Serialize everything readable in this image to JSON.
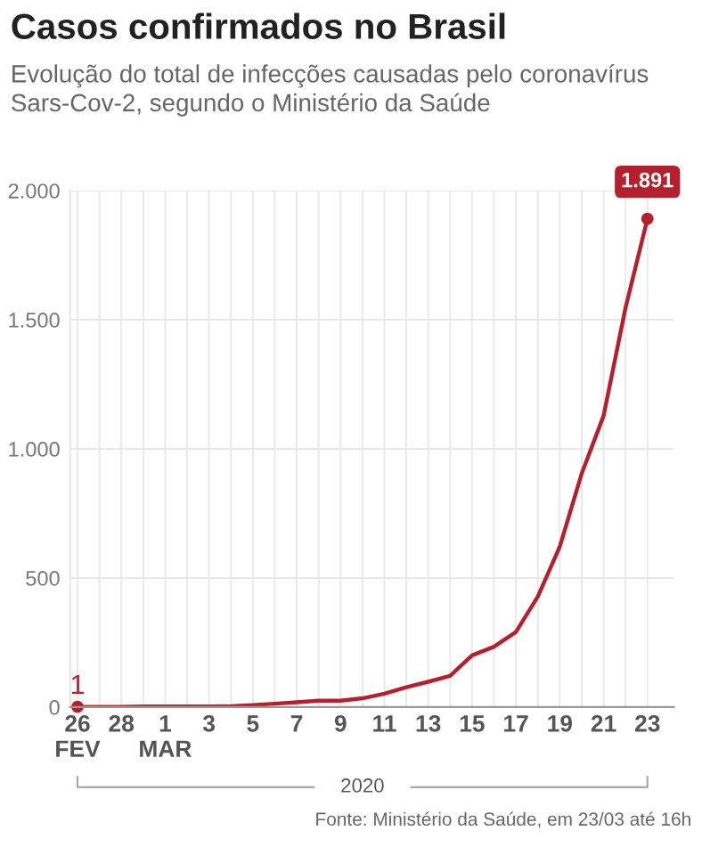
{
  "chart_data": {
    "type": "line",
    "title": "Casos confirmados no Brasil",
    "subtitle": "Evolução do total de infecções causadas pelo coronavírus Sars-Cov-2, segundo o Ministério da Saúde",
    "xlabel": "2020",
    "x": [
      "2020-02-26",
      "2020-02-27",
      "2020-02-28",
      "2020-02-29",
      "2020-03-01",
      "2020-03-02",
      "2020-03-03",
      "2020-03-04",
      "2020-03-05",
      "2020-03-06",
      "2020-03-07",
      "2020-03-08",
      "2020-03-09",
      "2020-03-10",
      "2020-03-11",
      "2020-03-12",
      "2020-03-13",
      "2020-03-14",
      "2020-03-15",
      "2020-03-16",
      "2020-03-17",
      "2020-03-18",
      "2020-03-19",
      "2020-03-20",
      "2020-03-21",
      "2020-03-22",
      "2020-03-23"
    ],
    "series": [
      {
        "color": "#b5202e",
        "values": [
          1,
          1,
          1,
          2,
          2,
          2,
          2,
          3,
          8,
          13,
          19,
          25,
          25,
          34,
          52,
          77,
          98,
          121,
          200,
          234,
          291,
          428,
          621,
          904,
          1128,
          1546,
          1891
        ],
        "value_labels": [
          "1",
          null,
          null,
          null,
          null,
          null,
          null,
          null,
          null,
          null,
          null,
          null,
          null,
          null,
          null,
          null,
          null,
          null,
          null,
          null,
          null,
          null,
          null,
          null,
          null,
          null,
          "1.891"
        ]
      }
    ],
    "xlim": [
      "2020-02-25T16:00",
      "2020-03-24T05:00"
    ],
    "xticks": [
      {
        "value": "2020-02-26",
        "label": "26\nFEV"
      },
      {
        "value": "2020-02-27",
        "label": null
      },
      {
        "value": "2020-02-28",
        "label": "28"
      },
      {
        "value": "2020-02-29",
        "label": null
      },
      {
        "value": "2020-03-01",
        "label": "1\nMAR"
      },
      {
        "value": "2020-03-02",
        "label": null
      },
      {
        "value": "2020-03-03",
        "label": "3"
      },
      {
        "value": "2020-03-04",
        "label": null
      },
      {
        "value": "2020-03-05",
        "label": "5"
      },
      {
        "value": "2020-03-06",
        "label": null
      },
      {
        "value": "2020-03-07",
        "label": "7"
      },
      {
        "value": "2020-03-08",
        "label": null
      },
      {
        "value": "2020-03-09",
        "label": "9"
      },
      {
        "value": "2020-03-10",
        "label": null
      },
      {
        "value": "2020-03-11",
        "label": "11"
      },
      {
        "value": "2020-03-12",
        "label": null
      },
      {
        "value": "2020-03-13",
        "label": "13"
      },
      {
        "value": "2020-03-14",
        "label": null
      },
      {
        "value": "2020-03-15",
        "label": "15"
      },
      {
        "value": "2020-03-16",
        "label": null
      },
      {
        "value": "2020-03-17",
        "label": "17"
      },
      {
        "value": "2020-03-18",
        "label": null
      },
      {
        "value": "2020-03-19",
        "label": "19"
      },
      {
        "value": "2020-03-20",
        "label": null
      },
      {
        "value": "2020-03-21",
        "label": "21"
      },
      {
        "value": "2020-03-22",
        "label": null
      },
      {
        "value": "2020-03-23",
        "label": "23"
      }
    ],
    "ylim": [
      0,
      2000
    ],
    "yticks": [
      0,
      {
        "value": 500,
        "label": "500"
      },
      {
        "value": 1000,
        "label": "1.000"
      },
      {
        "value": 1500,
        "label": "1.500"
      },
      {
        "value": 2000,
        "label": "2.000"
      }
    ],
    "grid": true,
    "line_style": "solid",
    "annotations": [
      "Fonte: Ministério da Saúde, em 23/03 até 16h"
    ]
  }
}
